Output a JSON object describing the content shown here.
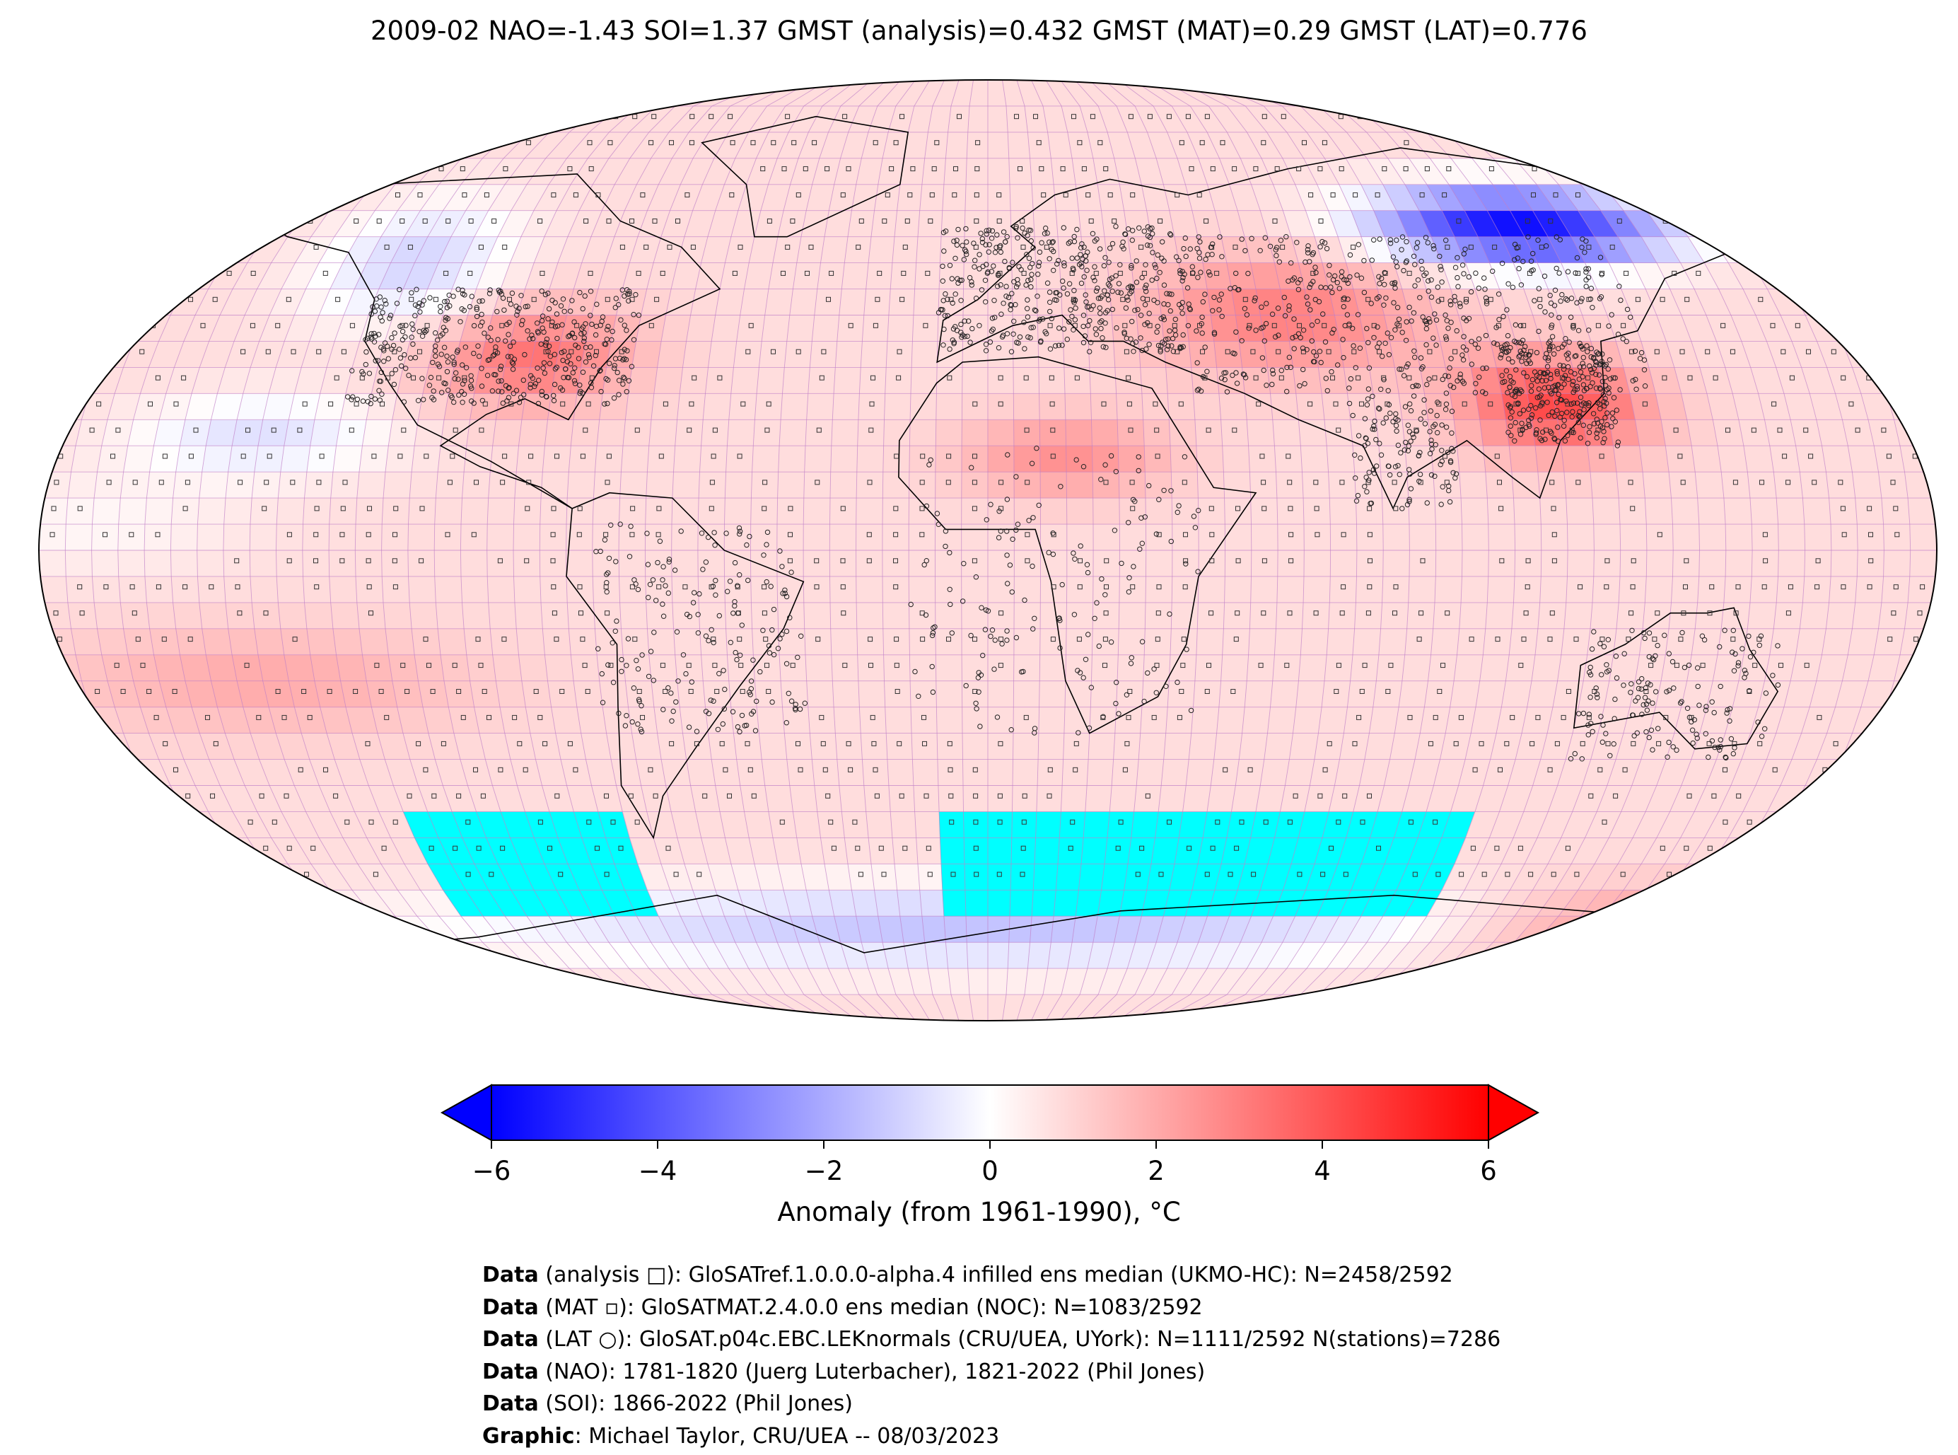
{
  "title": "2009-02 NAO=-1.43 SOI=1.37 GMST (analysis)=0.432 GMST (MAT)=0.29 GMST (LAT)=0.776",
  "colors": {
    "cold": "#0000ff",
    "neutral": "#ffffff",
    "warm": "#ff0000",
    "missing": "#00ffff",
    "grid": "#c080c8"
  },
  "colorbar": {
    "label": "Anomaly (from 1961-1990), °C",
    "ticks": [
      "−6",
      "−4",
      "−2",
      "0",
      "2",
      "4",
      "6"
    ],
    "tick_values": [
      -6,
      -4,
      -2,
      0,
      2,
      4,
      6
    ],
    "range": [
      -6,
      6
    ]
  },
  "credits": [
    {
      "key": "Data",
      "text": " (analysis □): GloSATref.1.0.0.0-alpha.4 infilled ens median (UKMO-HC): N=2458/2592"
    },
    {
      "key": "Data",
      "text": " (MAT ▫): GloSATMAT.2.4.0.0 ens median (NOC): N=1083/2592"
    },
    {
      "key": "Data",
      "text": " (LAT ○): GloSAT.p04c.EBC.LEKnormals (CRU/UEA, UYork): N=1111/2592 N(stations)=7286"
    },
    {
      "key": "Data",
      "text": " (NAO): 1781-1820 (Juerg Luterbacher), 1821-2022 (Phil Jones)"
    },
    {
      "key": "Data",
      "text": " (SOI): 1866-2022 (Phil Jones)"
    },
    {
      "key": "Graphic",
      "text": ": Michael Taylor, CRU/UEA -- 08/03/2023"
    }
  ]
}
